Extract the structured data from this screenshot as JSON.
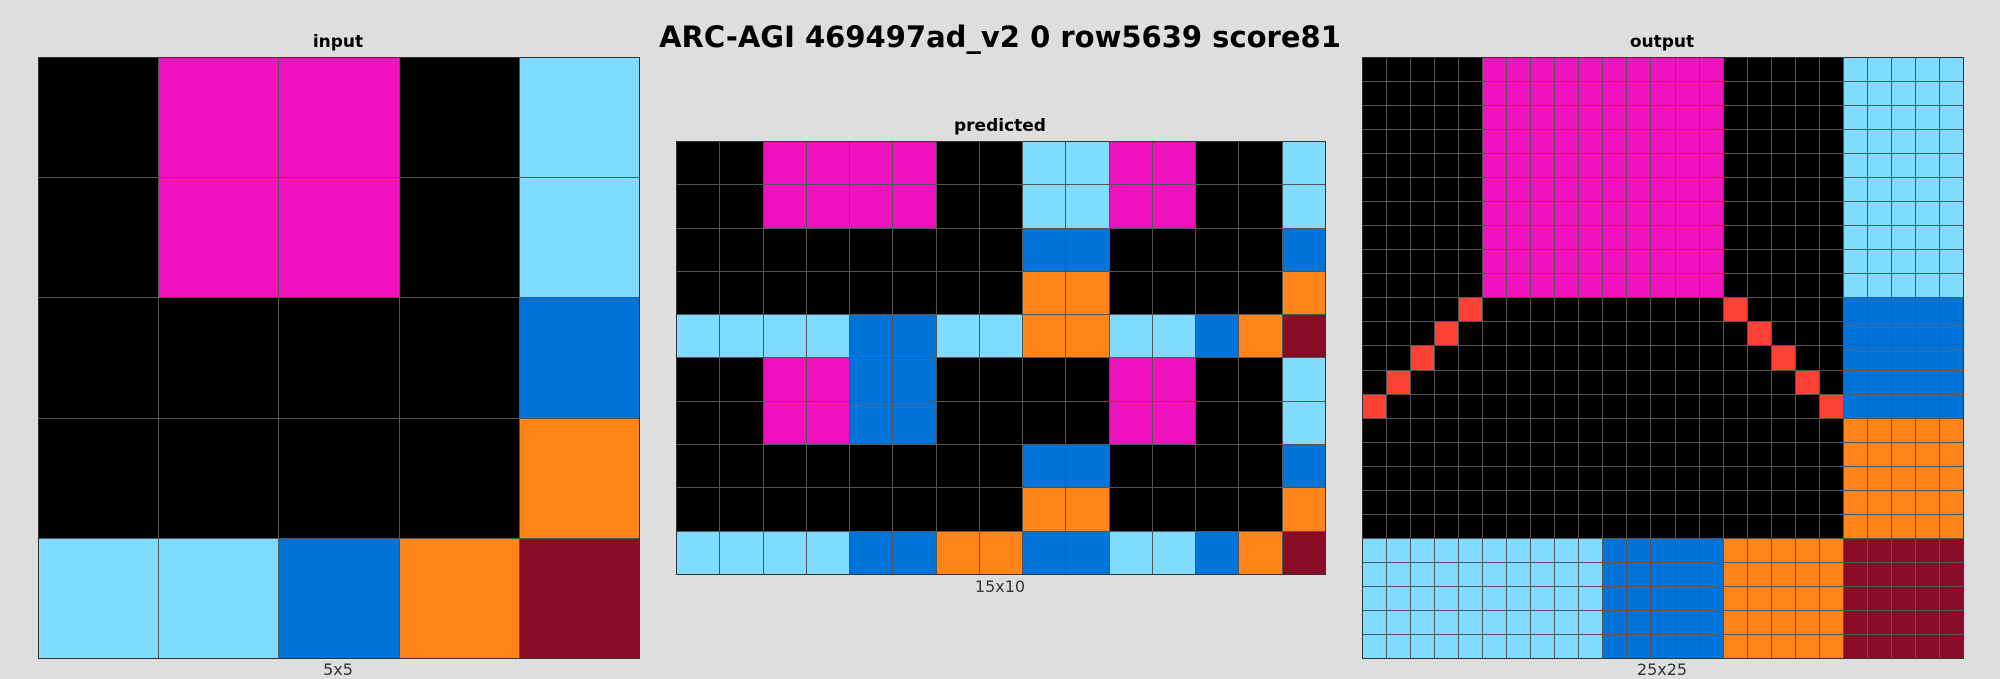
{
  "title": "ARC-AGI 469497ad_v2 0 row5639 score81",
  "palette": {
    "0": "#000000",
    "1": "#0074D9",
    "2": "#FF4136",
    "6": "#F012BE",
    "7": "#FF851B",
    "8": "#7FDBFF",
    "9": "#870C25"
  },
  "panels": {
    "input": {
      "label": "input",
      "size": "5x5",
      "rows": [
        "06608",
        "06608",
        "00001",
        "00007",
        "88179"
      ]
    },
    "predicted": {
      "label": "predicted",
      "size": "15x10",
      "rows": [
        "006666008866008",
        "006666008866008",
        "000000001100001",
        "000000007700007",
        "888811887788179",
        "006611000066008",
        "006611000066008",
        "000000001100001",
        "000000007700007",
        "888811771188179"
      ]
    },
    "output": {
      "label": "output",
      "size": "25x25",
      "rows": [
        "0000066666666660000088888",
        "0000066666666660000088888",
        "0000066666666660000088888",
        "0000066666666660000088888",
        "0000066666666660000088888",
        "0000066666666660000088888",
        "0000066666666660000088888",
        "0000066666666660000088888",
        "0000066666666660000088888",
        "0000066666666660000088888",
        "0000200000000002000011111",
        "0002000000000000200011111",
        "0020000000000000020011111",
        "0200000000000000002011111",
        "2000000000000000000211111",
        "0000000000000000000077777",
        "0000000000000000000077777",
        "0000000000000000000077777",
        "0000000000000000000077777",
        "0000000000000000000077777",
        "8888888888111117777799999",
        "8888888888111117777799999",
        "8888888888111117777799999",
        "8888888888111117777799999",
        "8888888888111117777799999"
      ]
    }
  }
}
